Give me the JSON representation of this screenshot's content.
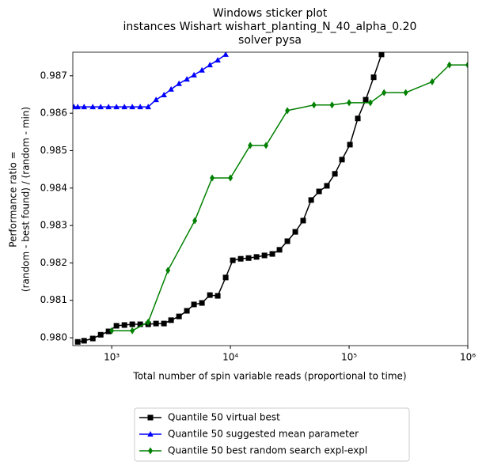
{
  "chart_data": {
    "type": "line",
    "title": [
      "Windows sticker plot",
      "instances Wishart wishart_planting_N_40_alpha_0.20",
      "solver pysa"
    ],
    "xlabel": "Total number of spin variable reads (proportional to time)",
    "ylabel": [
      "Performance ratio =",
      "(random - best found) / (random - min)"
    ],
    "xscale": "log",
    "xlim": [
      470,
      1000000
    ],
    "ylim": [
      0.97979,
      0.98763
    ],
    "xticks": [
      {
        "value": 1000,
        "label": "10³"
      },
      {
        "value": 10000,
        "label": "10⁴"
      },
      {
        "value": 100000,
        "label": "10⁵"
      },
      {
        "value": 1000000,
        "label": "10⁶"
      }
    ],
    "yticks": [
      {
        "value": 0.98,
        "label": "0.980"
      },
      {
        "value": 0.981,
        "label": "0.981"
      },
      {
        "value": 0.982,
        "label": "0.982"
      },
      {
        "value": 0.983,
        "label": "0.983"
      },
      {
        "value": 0.984,
        "label": "0.984"
      },
      {
        "value": 0.985,
        "label": "0.985"
      },
      {
        "value": 0.986,
        "label": "0.986"
      },
      {
        "value": 0.987,
        "label": "0.987"
      }
    ],
    "legend": "lower center outside",
    "series": [
      {
        "name": "Quantile 50 virtual best",
        "color": "#000000",
        "marker": "square",
        "x": [
          517,
          585,
          692,
          807,
          940,
          1096,
          1279,
          1490,
          1738,
          2028,
          2362,
          2754,
          3162,
          3687,
          4296,
          4932,
          5754,
          6714,
          7816,
          9120,
          10470,
          12210,
          14230,
          16600,
          19360,
          22550,
          25900,
          30200,
          35200,
          41000,
          47900,
          55800,
          65000,
          75900,
          87100,
          101600,
          118400,
          138000,
          161000,
          187500
        ],
        "values": [
          0.97989,
          0.97992,
          0.97998,
          0.98008,
          0.98017,
          0.98032,
          0.98034,
          0.98036,
          0.98036,
          0.98036,
          0.98038,
          0.98038,
          0.98047,
          0.98057,
          0.98072,
          0.98089,
          0.98093,
          0.98114,
          0.98112,
          0.98161,
          0.98207,
          0.98211,
          0.98213,
          0.98216,
          0.9822,
          0.98224,
          0.98235,
          0.98258,
          0.98283,
          0.98313,
          0.98368,
          0.98391,
          0.98406,
          0.98438,
          0.98476,
          0.98516,
          0.98586,
          0.98636,
          0.98696,
          0.98757
        ]
      },
      {
        "name": "Quantile 50 suggested mean parameter",
        "color": "#0000ff",
        "marker": "triangle",
        "x": [
          480,
          517,
          585,
          692,
          807,
          940,
          1096,
          1279,
          1490,
          1738,
          2028,
          2362,
          2754,
          3162,
          3687,
          4296,
          4932,
          5754,
          6714,
          7816,
          9120
        ],
        "values": [
          0.98617,
          0.98617,
          0.98617,
          0.98617,
          0.98617,
          0.98617,
          0.98617,
          0.98617,
          0.98617,
          0.98617,
          0.98617,
          0.98636,
          0.98649,
          0.98664,
          0.98679,
          0.98691,
          0.98702,
          0.98715,
          0.98729,
          0.98742,
          0.98757
        ]
      },
      {
        "name": "Quantile 50  best random search expl-expl",
        "color": "#008000",
        "marker": "diamond",
        "x": [
          1000,
          1490,
          2028,
          2976,
          5012,
          7017,
          10000,
          14680,
          19950,
          30200,
          50580,
          71800,
          100000,
          151000,
          197000,
          300000,
          501000,
          700000,
          1000000
        ],
        "values": [
          0.98019,
          0.98019,
          0.98042,
          0.9818,
          0.98313,
          0.98427,
          0.98427,
          0.98514,
          0.98514,
          0.98607,
          0.98622,
          0.98622,
          0.98628,
          0.98628,
          0.98655,
          0.98655,
          0.98684,
          0.98729,
          0.98729
        ]
      }
    ]
  }
}
